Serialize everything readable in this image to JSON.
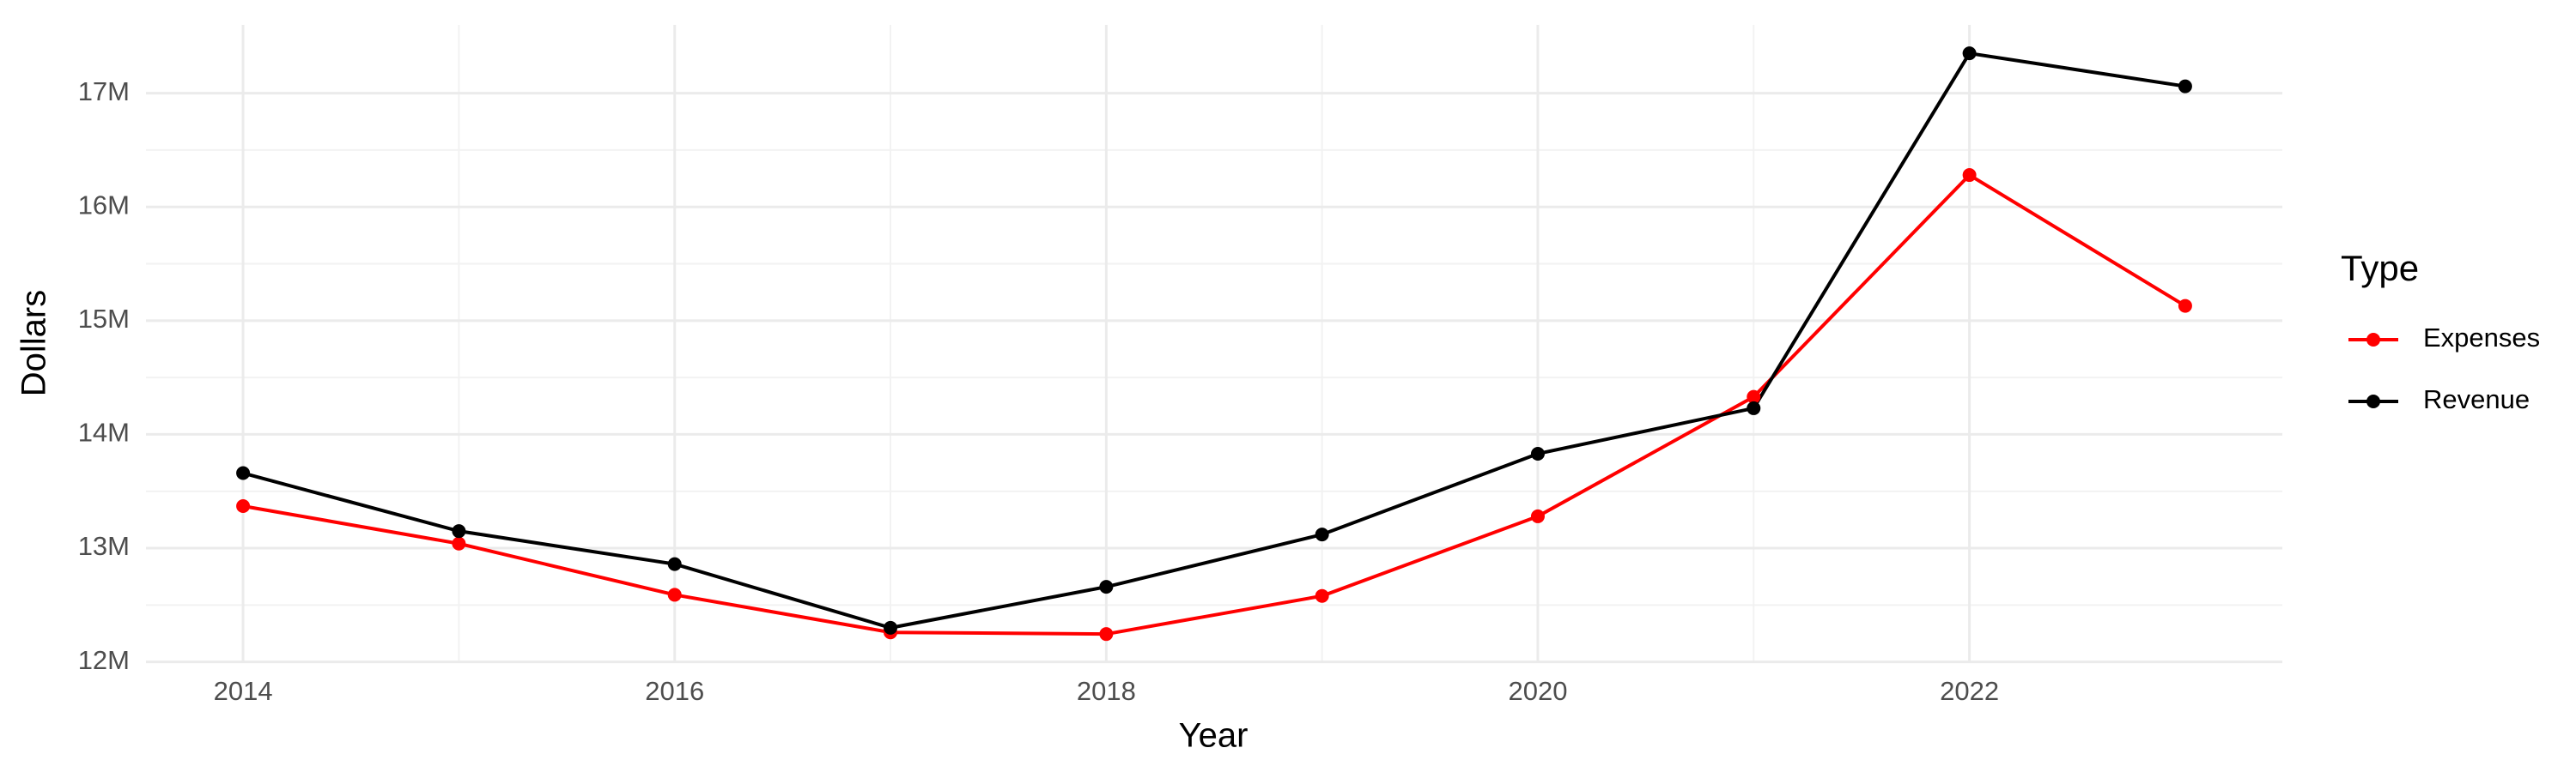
{
  "chart_data": {
    "type": "line",
    "x_label": "Year",
    "y_label": "Dollars",
    "x": [
      2014,
      2015,
      2016,
      2017,
      2018,
      2019,
      2020,
      2021,
      2022,
      2023
    ],
    "series": [
      {
        "name": "Expenses",
        "color": "#ff0000",
        "values": [
          13370000,
          13040000,
          12590000,
          12260000,
          12245000,
          12580000,
          13280000,
          14330000,
          16280000,
          15130000
        ]
      },
      {
        "name": "Revenue",
        "color": "#000000",
        "values": [
          13660000,
          13150000,
          12860000,
          12300000,
          12660000,
          13120000,
          13830000,
          14230000,
          17350000,
          17060000
        ]
      }
    ],
    "legend_title": "Type",
    "legend": "right",
    "xlim": [
      2013.55,
      2023.45
    ],
    "xticks": [
      2014,
      2016,
      2018,
      2020,
      2022
    ],
    "ylim": [
      11990000,
      17600000
    ],
    "yticks": [
      {
        "value": 12000000,
        "label": "12M"
      },
      {
        "value": 13000000,
        "label": "13M"
      },
      {
        "value": 14000000,
        "label": "14M"
      },
      {
        "value": 15000000,
        "label": "15M"
      },
      {
        "value": 16000000,
        "label": "16M"
      },
      {
        "value": 17000000,
        "label": "17M"
      }
    ],
    "grid": true
  }
}
